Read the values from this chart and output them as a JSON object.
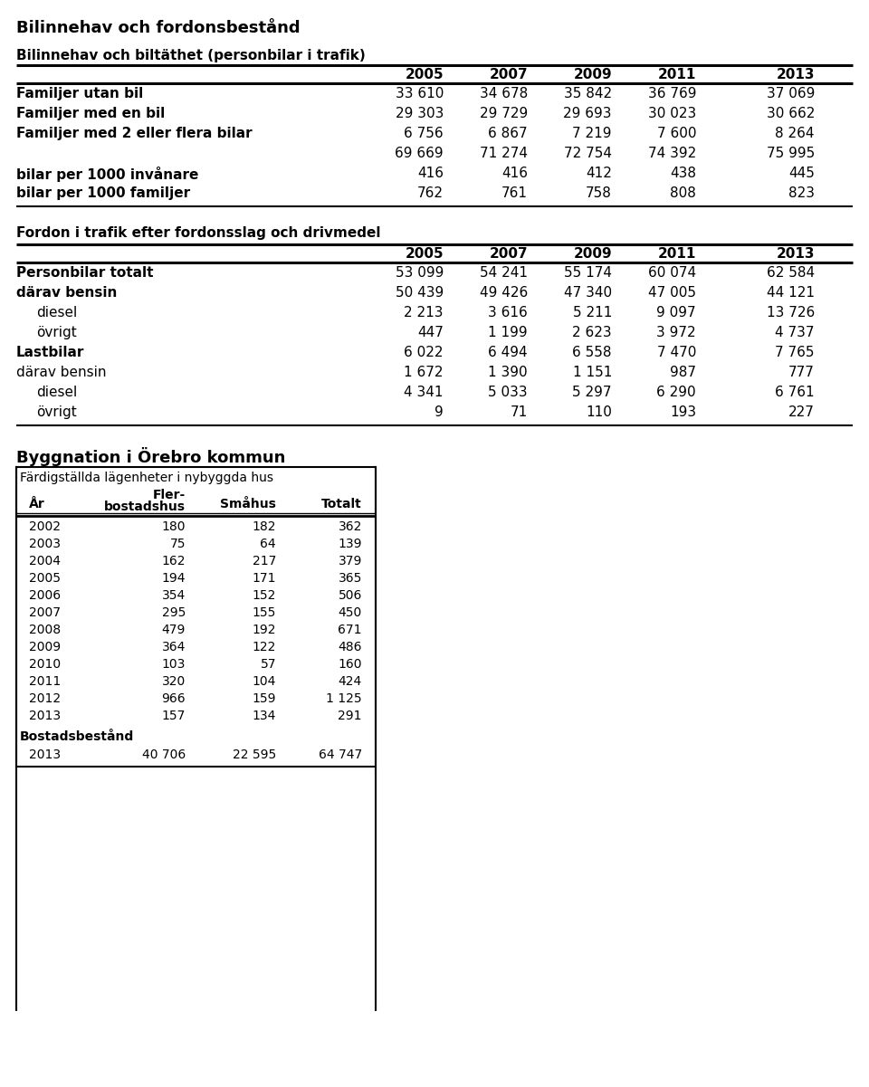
{
  "title1": "Bilinnehav och fordonsbestånd",
  "subtitle1": "Bilinnehav och biltäthet (personbilar i trafik)",
  "table1_years": [
    "2005",
    "2007",
    "2009",
    "2011",
    "2013"
  ],
  "table1_rows": [
    {
      "label": "Familjer utan bil",
      "values": [
        "33 610",
        "34 678",
        "35 842",
        "36 769",
        "37 069"
      ],
      "bold": true,
      "indent": 0
    },
    {
      "label": "Familjer med en bil",
      "values": [
        "29 303",
        "29 729",
        "29 693",
        "30 023",
        "30 662"
      ],
      "bold": true,
      "indent": 0
    },
    {
      "label": "Familjer med 2 eller flera bilar",
      "values": [
        "6 756",
        "6 867",
        "7 219",
        "7 600",
        "8 264"
      ],
      "bold": true,
      "indent": 0
    },
    {
      "label": "",
      "values": [
        "69 669",
        "71 274",
        "72 754",
        "74 392",
        "75 995"
      ],
      "bold": false,
      "indent": 0
    },
    {
      "label": "bilar per 1000 invånare",
      "values": [
        "416",
        "416",
        "412",
        "438",
        "445"
      ],
      "bold": true,
      "indent": 0
    },
    {
      "label": "bilar per 1000 familjer",
      "values": [
        "762",
        "761",
        "758",
        "808",
        "823"
      ],
      "bold": true,
      "indent": 0
    }
  ],
  "subtitle2": "Fordon i trafik efter fordonsslag och drivmedel",
  "table2_years": [
    "2005",
    "2007",
    "2009",
    "2011",
    "2013"
  ],
  "table2_rows": [
    {
      "label": "Personbilar totalt",
      "values": [
        "53 099",
        "54 241",
        "55 174",
        "60 074",
        "62 584"
      ],
      "bold": true,
      "indent": 0
    },
    {
      "label": "därav bensin",
      "values": [
        "50 439",
        "49 426",
        "47 340",
        "47 005",
        "44 121"
      ],
      "bold": true,
      "indent": 0
    },
    {
      "label": "diesel",
      "values": [
        "2 213",
        "3 616",
        "5 211",
        "9 097",
        "13 726"
      ],
      "bold": false,
      "indent": 1
    },
    {
      "label": "övrigt",
      "values": [
        "447",
        "1 199",
        "2 623",
        "3 972",
        "4 737"
      ],
      "bold": false,
      "indent": 1
    },
    {
      "label": "Lastbilar",
      "values": [
        "6 022",
        "6 494",
        "6 558",
        "7 470",
        "7 765"
      ],
      "bold": true,
      "indent": 0
    },
    {
      "label": "därav bensin",
      "values": [
        "1 672",
        "1 390",
        "1 151",
        "987",
        "777"
      ],
      "bold": false,
      "indent": 0
    },
    {
      "label": "diesel",
      "values": [
        "4 341",
        "5 033",
        "5 297",
        "6 290",
        "6 761"
      ],
      "bold": false,
      "indent": 1
    },
    {
      "label": "övrigt",
      "values": [
        "9",
        "71",
        "110",
        "193",
        "227"
      ],
      "bold": false,
      "indent": 1
    }
  ],
  "title3": "Byggnation i Örebro kommun",
  "table3_subtitle": "Färdigställda lägenheter i nybyggda hus",
  "table3_rows": [
    [
      "2002",
      "180",
      "182",
      "362"
    ],
    [
      "2003",
      "75",
      "64",
      "139"
    ],
    [
      "2004",
      "162",
      "217",
      "379"
    ],
    [
      "2005",
      "194",
      "171",
      "365"
    ],
    [
      "2006",
      "354",
      "152",
      "506"
    ],
    [
      "2007",
      "295",
      "155",
      "450"
    ],
    [
      "2008",
      "479",
      "192",
      "671"
    ],
    [
      "2009",
      "364",
      "122",
      "486"
    ],
    [
      "2010",
      "103",
      "57",
      "160"
    ],
    [
      "2011",
      "320",
      "104",
      "424"
    ],
    [
      "2012",
      "966",
      "159",
      "1 125"
    ],
    [
      "2013",
      "157",
      "134",
      "291"
    ]
  ],
  "table3_footer_label": "Bostadsbestånd",
  "table3_footer_row": [
    "2013",
    "40 706",
    "22 595",
    "64 747"
  ],
  "background_color": "#ffffff"
}
